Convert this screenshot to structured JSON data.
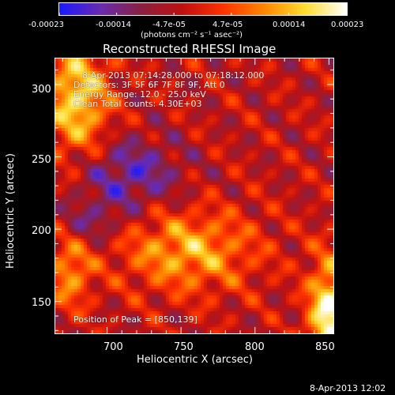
{
  "chart_data": {
    "type": "heatmap",
    "title": "Reconstructed RHESSI Image",
    "xlabel": "Heliocentric X (arcsec)",
    "ylabel": "Heliocentric Y (arcsec)",
    "xlim": [
      665,
      853
    ],
    "ylim": [
      128,
      318
    ],
    "x_ticks": [
      700,
      750,
      800,
      850
    ],
    "y_ticks": [
      150,
      200,
      250,
      300
    ],
    "colorbar": {
      "colormap": "blue-purple-red-orange-yellow-white",
      "range": [
        -0.00023,
        0.00023
      ],
      "ticks": [
        "-0.00023",
        "-0.00014",
        "-4.7e-05",
        "4.7e-05",
        "0.00014",
        "0.00023"
      ],
      "unit_label": "(photons cm⁻² s⁻¹ asec⁻²)"
    },
    "annotations": {
      "time_range": "8-Apr-2013 07:14:28.000 to 07:18:12.000",
      "detectors": "Detectors: 3F 5F 6F 7F 8F 9F, Att 0",
      "energy_range": "Energy Range: 12.0 - 25.0 keV",
      "clean": "Clean    Total counts: 4.30E+03",
      "peak": "Position of Peak = [850,139]"
    },
    "peak_position": [
      850,
      139
    ],
    "footer_timestamp": "8-Apr-2013 12:02",
    "colors": {
      "background": "#000000",
      "foreground": "#ffffff",
      "colormap_stops": [
        "#1a1aff",
        "#6a2bb0",
        "#8a2040",
        "#c01010",
        "#ff3300",
        "#ff8800",
        "#ffdd33",
        "#ffffff"
      ]
    }
  }
}
